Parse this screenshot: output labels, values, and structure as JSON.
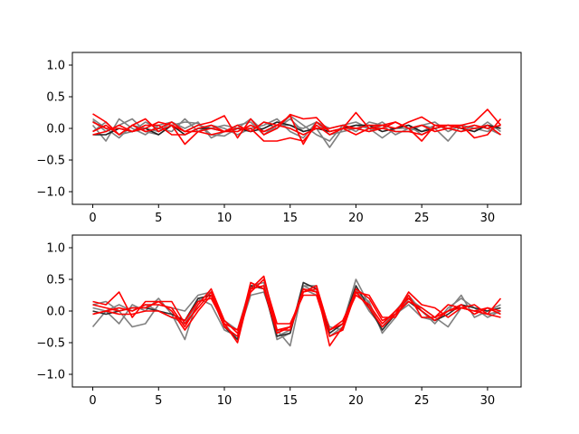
{
  "chart_data": [
    {
      "type": "line",
      "title": "",
      "xlabel": "",
      "ylabel": "",
      "xlim": [
        -1.55,
        32.55
      ],
      "ylim": [
        -1.2,
        1.2
      ],
      "xticks": [
        0,
        5,
        10,
        15,
        20,
        25,
        30
      ],
      "yticks": [
        -1.0,
        -0.5,
        0.0,
        0.5,
        1.0
      ],
      "xtick_labels": [
        "0",
        "5",
        "10",
        "15",
        "20",
        "25",
        "30"
      ],
      "ytick_labels": [
        "−1.0",
        "−0.5",
        "0.0",
        "0.5",
        "1.0"
      ],
      "grid": false,
      "x": [
        0,
        1,
        2,
        3,
        4,
        5,
        6,
        7,
        8,
        9,
        10,
        11,
        12,
        13,
        14,
        15,
        16,
        17,
        18,
        19,
        20,
        21,
        22,
        23,
        24,
        25,
        26,
        27,
        28,
        29,
        30,
        31
      ],
      "series": [
        {
          "color": "#808080",
          "values": [
            0.12,
            -0.05,
            0.05,
            0.15,
            -0.05,
            -0.1,
            0.05,
            0.1,
            0.08,
            -0.1,
            -0.12,
            0.0,
            0.15,
            -0.05,
            0.0,
            0.2,
            0.05,
            -0.1,
            -0.2,
            0.05,
            0.1,
            0.0,
            -0.15,
            0.0,
            0.05,
            -0.1,
            0.0,
            0.05,
            0.0,
            -0.05,
            0.1,
            -0.05
          ]
        },
        {
          "color": "#808080",
          "values": [
            -0.05,
            0.1,
            -0.1,
            -0.05,
            0.1,
            0.0,
            -0.05,
            0.15,
            -0.05,
            0.05,
            0.0,
            -0.1,
            0.0,
            0.05,
            0.15,
            -0.05,
            -0.15,
            0.1,
            0.0,
            0.05,
            -0.05,
            0.1,
            0.05,
            -0.1,
            0.0,
            0.05,
            0.1,
            -0.05,
            0.05,
            0.0,
            -0.05,
            0.05
          ]
        },
        {
          "color": "#808080",
          "values": [
            0.05,
            -0.2,
            0.15,
            0.0,
            -0.1,
            0.05,
            0.1,
            -0.05,
            0.05,
            0.0,
            0.05,
            0.0,
            -0.05,
            0.1,
            0.0,
            0.15,
            -0.05,
            0.0,
            -0.3,
            0.0,
            0.05,
            0.0,
            0.1,
            -0.05,
            -0.05,
            0.05,
            0.0,
            -0.2,
            0.05,
            0.0,
            0.05,
            0.0
          ]
        },
        {
          "color": "#808080",
          "values": [
            0.15,
            0.0,
            -0.15,
            0.05,
            0.0,
            -0.05,
            0.1,
            0.0,
            0.1,
            -0.15,
            -0.05,
            0.05,
            0.1,
            -0.1,
            0.05,
            0.05,
            0.0,
            0.1,
            -0.1,
            -0.05,
            0.0,
            -0.05,
            0.05,
            0.0,
            0.0,
            -0.05,
            0.05,
            0.0,
            -0.05,
            0.05,
            0.0,
            -0.1
          ]
        },
        {
          "color": "#202020",
          "values": [
            -0.1,
            -0.1,
            0.0,
            -0.05,
            0.0,
            -0.1,
            0.05,
            -0.1,
            0.0,
            0.0,
            -0.05,
            0.0,
            -0.05,
            0.0,
            0.1,
            0.05,
            -0.05,
            0.0,
            -0.05,
            0.0,
            0.05,
            0.05,
            -0.05,
            0.0,
            0.05,
            -0.05,
            0.0,
            0.05,
            0.0,
            -0.05,
            0.05,
            0.0
          ]
        },
        {
          "color": "#ff0000",
          "values": [
            0.23,
            0.1,
            -0.1,
            0.05,
            0.15,
            -0.05,
            0.05,
            -0.05,
            0.05,
            0.1,
            0.2,
            -0.15,
            0.15,
            -0.1,
            0.0,
            0.22,
            0.15,
            0.17,
            -0.05,
            0.0,
            0.25,
            0.0,
            0.05,
            0.1,
            0.0,
            0.05,
            -0.05,
            0.0,
            0.05,
            0.1,
            0.3,
            0.05
          ]
        },
        {
          "color": "#ff0000",
          "values": [
            -0.1,
            -0.05,
            0.05,
            -0.05,
            0.0,
            0.1,
            0.05,
            -0.25,
            -0.05,
            -0.1,
            -0.05,
            0.0,
            0.0,
            -0.2,
            -0.2,
            -0.15,
            -0.2,
            0.05,
            -0.1,
            0.0,
            -0.1,
            0.0,
            0.0,
            -0.05,
            -0.05,
            -0.1,
            0.0,
            0.05,
            0.05,
            -0.15,
            -0.1,
            0.15
          ]
        },
        {
          "color": "#ff0000",
          "values": [
            0.1,
            0.0,
            0.0,
            -0.05,
            0.05,
            0.05,
            -0.1,
            -0.1,
            0.0,
            0.05,
            -0.05,
            0.05,
            -0.05,
            0.1,
            0.05,
            0.2,
            -0.25,
            0.1,
            -0.05,
            0.0,
            0.0,
            0.05,
            0.05,
            0.0,
            0.1,
            0.18,
            0.05,
            0.0,
            -0.05,
            0.0,
            0.05,
            -0.1
          ]
        },
        {
          "color": "#ff0000",
          "values": [
            -0.05,
            0.05,
            -0.1,
            0.05,
            -0.05,
            0.0,
            0.1,
            -0.05,
            -0.05,
            0.0,
            -0.05,
            -0.05,
            0.05,
            -0.05,
            0.05,
            0.0,
            -0.1,
            0.0,
            0.0,
            0.05,
            0.0,
            -0.05,
            0.0,
            0.1,
            0.0,
            -0.2,
            0.05,
            0.05,
            0.0,
            0.05,
            0.0,
            0.05
          ]
        }
      ]
    },
    {
      "type": "line",
      "title": "",
      "xlabel": "",
      "ylabel": "",
      "xlim": [
        -1.55,
        32.55
      ],
      "ylim": [
        -1.2,
        1.2
      ],
      "xticks": [
        0,
        5,
        10,
        15,
        20,
        25,
        30
      ],
      "yticks": [
        -1.0,
        -0.5,
        0.0,
        0.5,
        1.0
      ],
      "xtick_labels": [
        "0",
        "5",
        "10",
        "15",
        "20",
        "25",
        "30"
      ],
      "ytick_labels": [
        "−1.0",
        "−0.5",
        "0.0",
        "0.5",
        "1.0"
      ],
      "grid": false,
      "x": [
        0,
        1,
        2,
        3,
        4,
        5,
        6,
        7,
        8,
        9,
        10,
        11,
        12,
        13,
        14,
        15,
        16,
        17,
        18,
        19,
        20,
        21,
        22,
        23,
        24,
        25,
        26,
        27,
        28,
        29,
        30,
        31
      ],
      "series": [
        {
          "color": "#808080",
          "values": [
            -0.25,
            0.0,
            -0.2,
            0.1,
            0.0,
            0.2,
            -0.05,
            -0.45,
            0.2,
            0.1,
            -0.3,
            -0.4,
            0.25,
            0.3,
            -0.3,
            -0.55,
            0.4,
            0.3,
            -0.35,
            -0.2,
            0.5,
            0.1,
            -0.3,
            -0.05,
            0.1,
            -0.1,
            -0.15,
            0.0,
            0.25,
            -0.1,
            0.0,
            0.1
          ]
        },
        {
          "color": "#808080",
          "values": [
            0.1,
            0.15,
            0.0,
            -0.25,
            -0.2,
            0.1,
            0.05,
            0.0,
            0.25,
            0.3,
            -0.15,
            -0.3,
            0.4,
            0.45,
            -0.4,
            -0.3,
            0.35,
            0.25,
            -0.25,
            -0.3,
            0.35,
            0.0,
            -0.25,
            0.0,
            0.25,
            0.0,
            -0.2,
            0.05,
            0.2,
            0.05,
            -0.1,
            0.0
          ]
        },
        {
          "color": "#808080",
          "values": [
            0.05,
            0.0,
            0.1,
            0.0,
            0.1,
            0.0,
            -0.1,
            -0.2,
            0.15,
            0.3,
            -0.2,
            -0.45,
            0.35,
            0.4,
            -0.45,
            -0.35,
            0.4,
            0.4,
            -0.4,
            -0.25,
            0.3,
            0.15,
            -0.35,
            -0.1,
            0.2,
            0.05,
            -0.1,
            -0.25,
            0.05,
            0.0,
            -0.05,
            0.0
          ]
        },
        {
          "color": "#303030",
          "values": [
            0.0,
            -0.05,
            0.0,
            0.05,
            0.05,
            0.0,
            -0.05,
            -0.15,
            0.2,
            0.25,
            -0.25,
            -0.45,
            0.4,
            0.35,
            -0.4,
            -0.35,
            0.45,
            0.35,
            -0.35,
            -0.2,
            0.4,
            0.05,
            -0.3,
            -0.05,
            0.15,
            0.0,
            -0.15,
            -0.05,
            0.1,
            0.05,
            0.0,
            0.05
          ]
        },
        {
          "color": "#ff0000",
          "values": [
            0.15,
            0.1,
            0.3,
            -0.1,
            0.15,
            0.15,
            0.15,
            -0.2,
            0.05,
            0.3,
            -0.2,
            -0.5,
            0.35,
            0.55,
            -0.3,
            -0.25,
            0.3,
            0.35,
            -0.55,
            -0.25,
            0.35,
            0.2,
            -0.15,
            -0.05,
            0.3,
            0.1,
            0.05,
            -0.1,
            0.05,
            0.0,
            -0.05,
            0.2
          ]
        },
        {
          "color": "#ff0000",
          "values": [
            -0.05,
            0.0,
            0.05,
            0.0,
            0.1,
            0.1,
            0.05,
            -0.25,
            0.1,
            0.35,
            -0.15,
            -0.35,
            0.3,
            0.5,
            -0.2,
            -0.2,
            0.25,
            0.25,
            -0.4,
            -0.3,
            0.3,
            0.25,
            -0.1,
            -0.1,
            0.25,
            -0.1,
            -0.1,
            0.1,
            0.05,
            0.1,
            -0.05,
            -0.1
          ]
        },
        {
          "color": "#ff0000",
          "values": [
            0.1,
            0.05,
            0.0,
            0.05,
            0.05,
            0.15,
            0.0,
            -0.3,
            0.0,
            0.25,
            -0.25,
            -0.4,
            0.45,
            0.35,
            -0.35,
            -0.25,
            0.35,
            0.3,
            -0.3,
            -0.2,
            0.25,
            0.1,
            -0.2,
            0.0,
            0.2,
            0.0,
            -0.15,
            0.0,
            0.1,
            -0.05,
            0.05,
            0.0
          ]
        },
        {
          "color": "#ff0000",
          "values": [
            -0.05,
            0.0,
            -0.05,
            -0.05,
            0.0,
            0.0,
            -0.1,
            -0.15,
            0.15,
            0.2,
            -0.2,
            -0.3,
            0.35,
            0.4,
            -0.3,
            -0.3,
            0.3,
            0.4,
            -0.3,
            -0.15,
            0.3,
            0.05,
            -0.25,
            -0.05,
            0.15,
            0.05,
            -0.1,
            0.0,
            0.05,
            0.0,
            0.05,
            -0.05
          ]
        }
      ]
    }
  ]
}
